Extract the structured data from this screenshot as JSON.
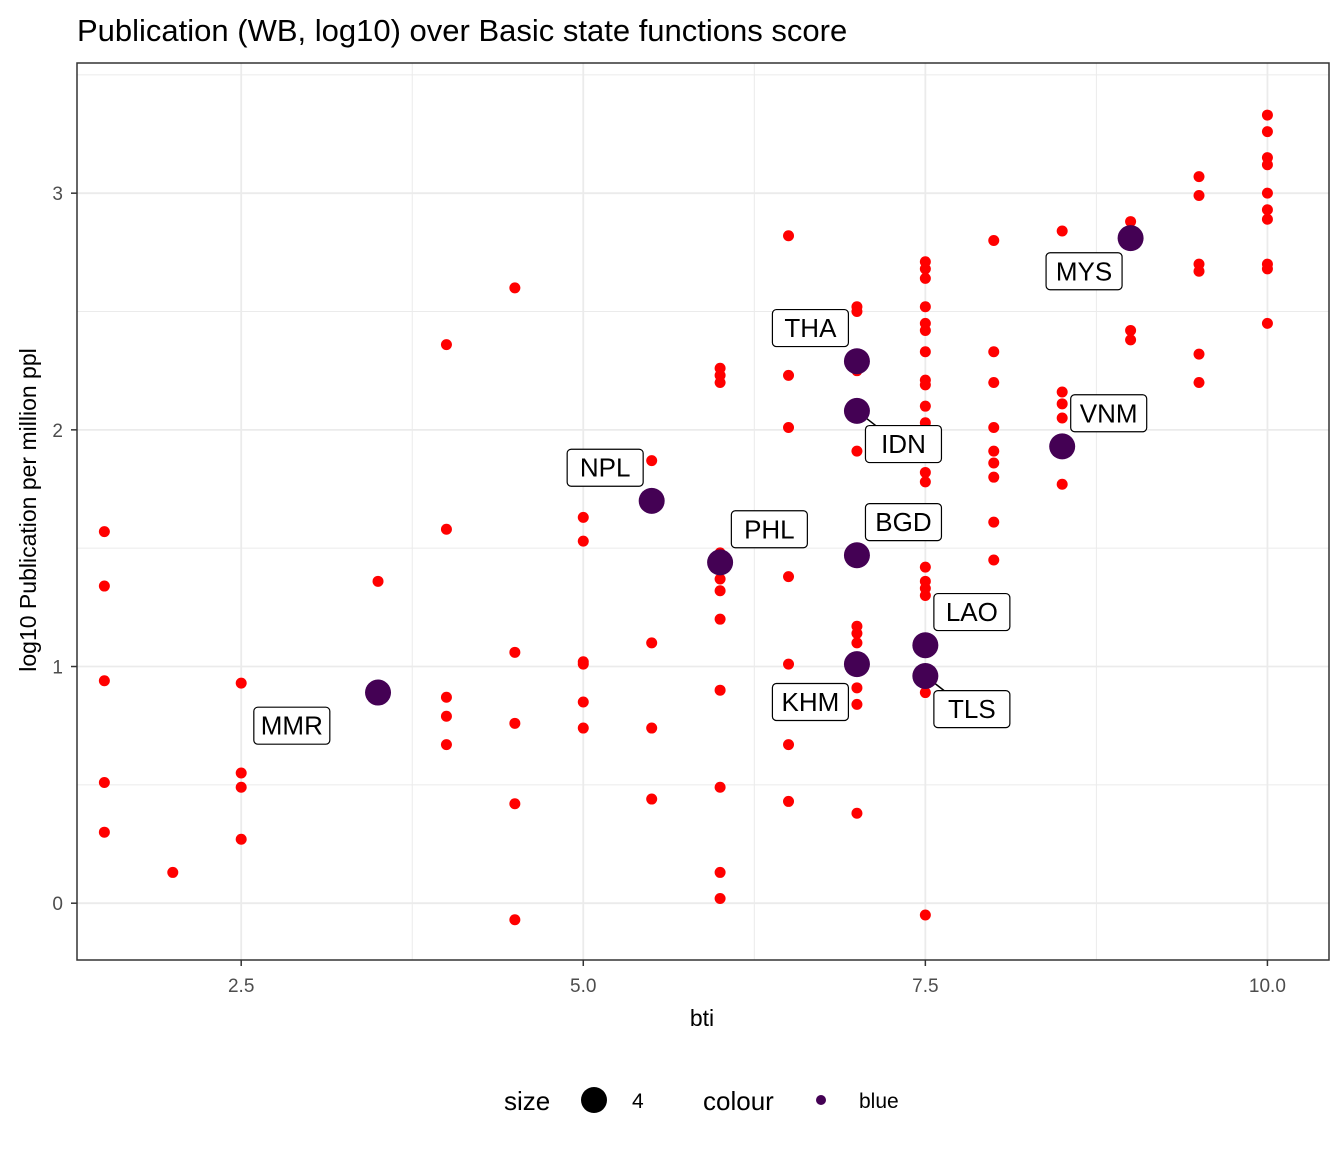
{
  "chart_data": {
    "type": "scatter",
    "title": "Publication (WB, log10) over Basic state functions score",
    "xlabel": "bti",
    "ylabel": "log10 Publication per million ppl",
    "xlim": [
      1.3,
      10.45
    ],
    "ylim": [
      -0.24,
      3.55
    ],
    "xticks": [
      2.5,
      5.0,
      7.5,
      10.0
    ],
    "xtick_labels": [
      "2.5",
      "5.0",
      "7.5",
      "10.0"
    ],
    "yticks": [
      0,
      1,
      2,
      3
    ],
    "ytick_labels": [
      "0",
      "1",
      "2",
      "3"
    ],
    "grid": true,
    "colors": {
      "background_points": "#ff0000",
      "highlight_points": "#440154",
      "grid": "#ebebeb",
      "panel_border": "#333333"
    },
    "background_points": [
      [
        1.5,
        1.57
      ],
      [
        1.5,
        1.34
      ],
      [
        1.5,
        0.94
      ],
      [
        1.5,
        0.51
      ],
      [
        1.5,
        0.3
      ],
      [
        2.0,
        0.13
      ],
      [
        2.5,
        0.93
      ],
      [
        2.5,
        0.55
      ],
      [
        2.5,
        0.49
      ],
      [
        2.5,
        0.27
      ],
      [
        3.5,
        1.36
      ],
      [
        4.0,
        2.36
      ],
      [
        4.0,
        1.58
      ],
      [
        4.0,
        0.87
      ],
      [
        4.0,
        0.79
      ],
      [
        4.0,
        0.67
      ],
      [
        4.5,
        2.6
      ],
      [
        4.5,
        1.06
      ],
      [
        4.5,
        0.76
      ],
      [
        4.5,
        0.42
      ],
      [
        4.5,
        -0.07
      ],
      [
        5.0,
        1.63
      ],
      [
        5.0,
        1.53
      ],
      [
        5.0,
        1.02
      ],
      [
        5.0,
        1.01
      ],
      [
        5.0,
        0.85
      ],
      [
        5.0,
        0.74
      ],
      [
        5.5,
        1.87
      ],
      [
        5.5,
        1.1
      ],
      [
        5.5,
        0.74
      ],
      [
        5.5,
        0.44
      ],
      [
        6.0,
        2.26
      ],
      [
        6.0,
        2.23
      ],
      [
        6.0,
        2.2
      ],
      [
        6.0,
        1.48
      ],
      [
        6.0,
        1.42
      ],
      [
        6.0,
        1.37
      ],
      [
        6.0,
        1.32
      ],
      [
        6.0,
        1.2
      ],
      [
        6.0,
        0.9
      ],
      [
        6.0,
        0.49
      ],
      [
        6.0,
        0.13
      ],
      [
        6.0,
        0.02
      ],
      [
        6.5,
        2.82
      ],
      [
        6.5,
        2.23
      ],
      [
        6.5,
        2.01
      ],
      [
        6.5,
        1.38
      ],
      [
        6.5,
        1.01
      ],
      [
        6.5,
        0.67
      ],
      [
        6.5,
        0.43
      ],
      [
        7.0,
        2.52
      ],
      [
        7.0,
        2.5
      ],
      [
        7.0,
        2.25
      ],
      [
        7.0,
        1.91
      ],
      [
        7.0,
        1.17
      ],
      [
        7.0,
        1.14
      ],
      [
        7.0,
        1.1
      ],
      [
        7.0,
        0.91
      ],
      [
        7.0,
        0.84
      ],
      [
        7.0,
        0.38
      ],
      [
        7.5,
        2.71
      ],
      [
        7.5,
        2.68
      ],
      [
        7.5,
        2.64
      ],
      [
        7.5,
        2.52
      ],
      [
        7.5,
        2.45
      ],
      [
        7.5,
        2.42
      ],
      [
        7.5,
        2.33
      ],
      [
        7.5,
        2.21
      ],
      [
        7.5,
        2.19
      ],
      [
        7.5,
        2.1
      ],
      [
        7.5,
        2.03
      ],
      [
        7.5,
        1.82
      ],
      [
        7.5,
        1.78
      ],
      [
        7.5,
        1.42
      ],
      [
        7.5,
        1.36
      ],
      [
        7.5,
        1.33
      ],
      [
        7.5,
        1.3
      ],
      [
        7.5,
        0.89
      ],
      [
        7.5,
        -0.05
      ],
      [
        8.0,
        2.8
      ],
      [
        8.0,
        2.33
      ],
      [
        8.0,
        2.2
      ],
      [
        8.0,
        2.01
      ],
      [
        8.0,
        1.91
      ],
      [
        8.0,
        1.86
      ],
      [
        8.0,
        1.8
      ],
      [
        8.0,
        1.61
      ],
      [
        8.0,
        1.45
      ],
      [
        8.5,
        2.84
      ],
      [
        8.5,
        2.16
      ],
      [
        8.5,
        2.11
      ],
      [
        8.5,
        2.05
      ],
      [
        8.5,
        1.77
      ],
      [
        9.0,
        2.88
      ],
      [
        9.0,
        2.78
      ],
      [
        9.0,
        2.42
      ],
      [
        9.0,
        2.38
      ],
      [
        9.5,
        3.07
      ],
      [
        9.5,
        2.99
      ],
      [
        9.5,
        2.7
      ],
      [
        9.5,
        2.67
      ],
      [
        9.5,
        2.32
      ],
      [
        9.5,
        2.2
      ],
      [
        10.0,
        3.33
      ],
      [
        10.0,
        3.26
      ],
      [
        10.0,
        3.15
      ],
      [
        10.0,
        3.12
      ],
      [
        10.0,
        3.0
      ],
      [
        10.0,
        2.93
      ],
      [
        10.0,
        2.89
      ],
      [
        10.0,
        2.7
      ],
      [
        10.0,
        2.68
      ],
      [
        10.0,
        2.45
      ]
    ],
    "highlighted": [
      {
        "code": "MMR",
        "x": 3.5,
        "y": 0.89,
        "lx": 2.87,
        "ly": 0.75
      },
      {
        "code": "NPL",
        "x": 5.5,
        "y": 1.7,
        "lx": 5.16,
        "ly": 1.84
      },
      {
        "code": "PHL",
        "x": 6.0,
        "y": 1.44,
        "lx": 6.36,
        "ly": 1.58
      },
      {
        "code": "THA",
        "x": 7.0,
        "y": 2.29,
        "lx": 6.66,
        "ly": 2.43
      },
      {
        "code": "IDN",
        "x": 7.0,
        "y": 2.08,
        "lx": 7.34,
        "ly": 1.94
      },
      {
        "code": "BGD",
        "x": 7.0,
        "y": 1.47,
        "lx": 7.34,
        "ly": 1.61
      },
      {
        "code": "KHM",
        "x": 7.0,
        "y": 1.01,
        "lx": 6.66,
        "ly": 0.85
      },
      {
        "code": "LAO",
        "x": 7.5,
        "y": 1.09,
        "lx": 7.84,
        "ly": 1.23
      },
      {
        "code": "TLS",
        "x": 7.5,
        "y": 0.96,
        "lx": 7.84,
        "ly": 0.82
      },
      {
        "code": "VNM",
        "x": 8.5,
        "y": 1.93,
        "lx": 8.84,
        "ly": 2.07
      },
      {
        "code": "MYS",
        "x": 9.0,
        "y": 2.81,
        "lx": 8.66,
        "ly": 2.67
      }
    ],
    "legend": {
      "placement": "bottom",
      "size_title": "size",
      "size_value": "4",
      "colour_title": "colour",
      "colour_value": "blue"
    }
  }
}
